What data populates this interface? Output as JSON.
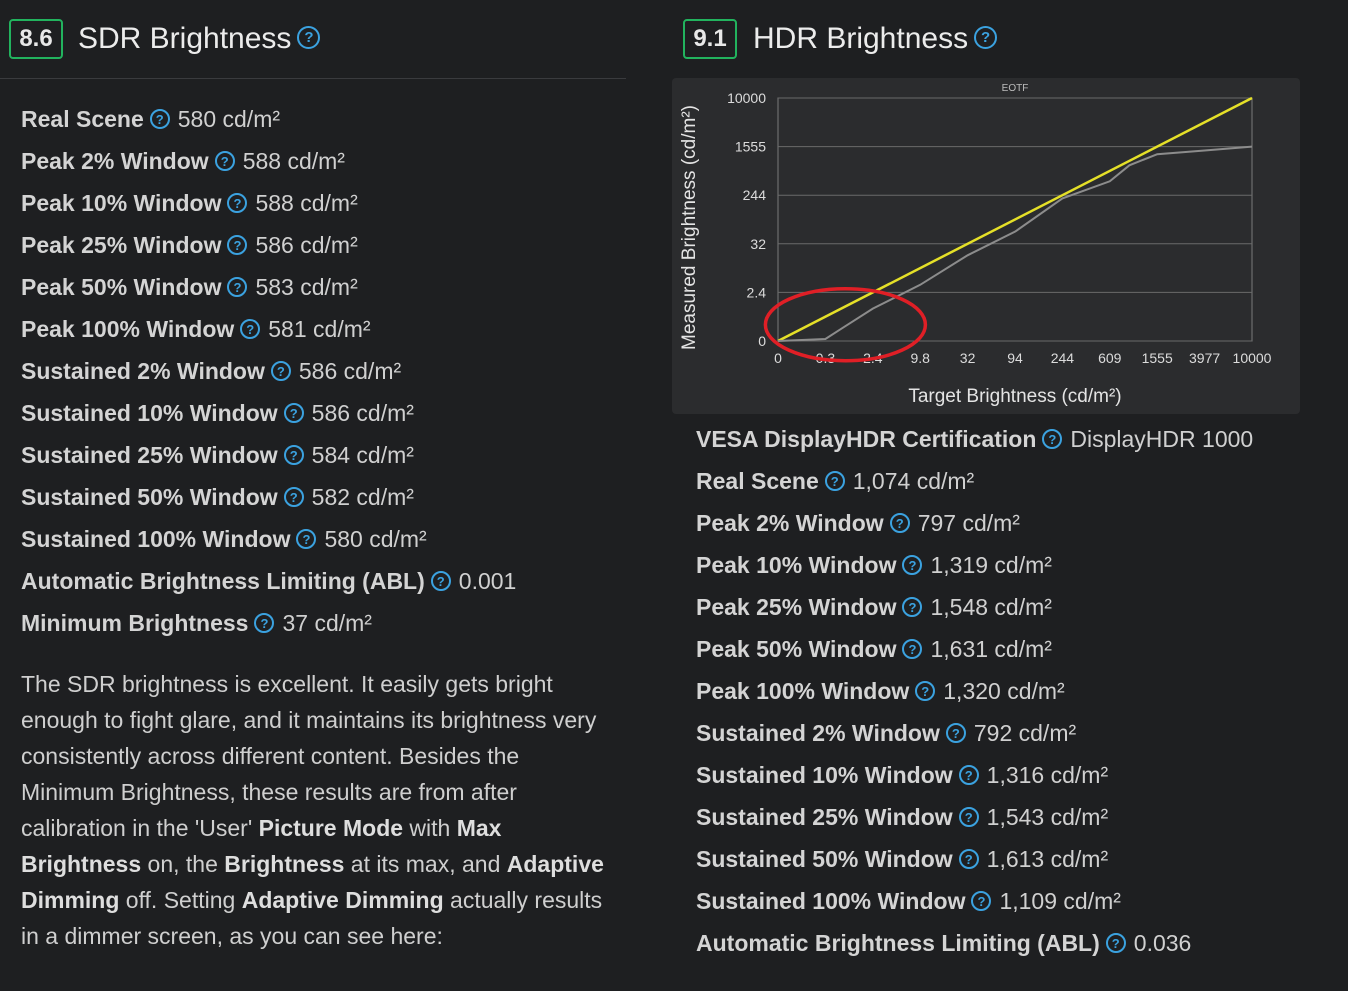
{
  "sdr": {
    "score": "8.6",
    "title": "SDR Brightness",
    "help_glyph": "?",
    "specs": [
      {
        "label": "Real Scene",
        "value": "580 cd/m²"
      },
      {
        "label": "Peak 2% Window",
        "value": "588 cd/m²"
      },
      {
        "label": "Peak 10% Window",
        "value": "588 cd/m²"
      },
      {
        "label": "Peak 25% Window",
        "value": "586 cd/m²"
      },
      {
        "label": "Peak 50% Window",
        "value": "583 cd/m²"
      },
      {
        "label": "Peak 100% Window",
        "value": "581 cd/m²"
      },
      {
        "label": "Sustained 2% Window",
        "value": "586 cd/m²"
      },
      {
        "label": "Sustained 10% Window",
        "value": "586 cd/m²"
      },
      {
        "label": "Sustained 25% Window",
        "value": "584 cd/m²"
      },
      {
        "label": "Sustained 50% Window",
        "value": "582 cd/m²"
      },
      {
        "label": "Sustained 100% Window",
        "value": "580 cd/m²"
      },
      {
        "label": "Automatic Brightness Limiting (ABL)",
        "value": "0.001"
      },
      {
        "label": "Minimum Brightness",
        "value": "37 cd/m²"
      }
    ],
    "description": [
      {
        "text": "The SDR brightness is excellent. It easily gets bright enough to fight glare, and it maintains its brightness very consistently across different content. Besides the Minimum Brightness, these results are from after calibration in the 'User' ",
        "bold": false
      },
      {
        "text": "Picture Mode",
        "bold": true
      },
      {
        "text": " with ",
        "bold": false
      },
      {
        "text": "Max Brightness",
        "bold": true
      },
      {
        "text": " on, the ",
        "bold": false
      },
      {
        "text": "Brightness",
        "bold": true
      },
      {
        "text": " at its max, and ",
        "bold": false
      },
      {
        "text": "Adaptive Dimming",
        "bold": true
      },
      {
        "text": " off. Setting ",
        "bold": false
      },
      {
        "text": "Adaptive Dimming",
        "bold": true
      },
      {
        "text": " actually results in a dimmer screen, as you can see here:",
        "bold": false
      }
    ]
  },
  "hdr": {
    "score": "9.1",
    "title": "HDR Brightness",
    "help_glyph": "?",
    "specs": [
      {
        "label": "VESA DisplayHDR Certification",
        "value": "DisplayHDR 1000"
      },
      {
        "label": "Real Scene",
        "value": "1,074 cd/m²"
      },
      {
        "label": "Peak 2% Window",
        "value": "797 cd/m²"
      },
      {
        "label": "Peak 10% Window",
        "value": "1,319 cd/m²"
      },
      {
        "label": "Peak 25% Window",
        "value": "1,548 cd/m²"
      },
      {
        "label": "Peak 50% Window",
        "value": "1,631 cd/m²"
      },
      {
        "label": "Peak 100% Window",
        "value": "1,320 cd/m²"
      },
      {
        "label": "Sustained 2% Window",
        "value": "792 cd/m²"
      },
      {
        "label": "Sustained 10% Window",
        "value": "1,316 cd/m²"
      },
      {
        "label": "Sustained 25% Window",
        "value": "1,543 cd/m²"
      },
      {
        "label": "Sustained 50% Window",
        "value": "1,613 cd/m²"
      },
      {
        "label": "Sustained 100% Window",
        "value": "1,109 cd/m²"
      },
      {
        "label": "Automatic Brightness Limiting (ABL)",
        "value": "0.036"
      }
    ]
  },
  "chart_data": {
    "type": "line",
    "title": "EOTF",
    "xlabel": "Target Brightness (cd/m²)",
    "ylabel": "Measured Brightness (cd/m²)",
    "x_ticks": [
      "0",
      "0.3",
      "2.4",
      "9.8",
      "32",
      "94",
      "244",
      "609",
      "1555",
      "3977",
      "10000"
    ],
    "y_ticks": [
      "0",
      "2.4",
      "32",
      "244",
      "1555",
      "10000"
    ],
    "grid": true,
    "series": [
      {
        "role": "target",
        "color": "#e5e028",
        "points": [
          [
            0,
            0
          ],
          [
            10000,
            10000
          ]
        ]
      },
      {
        "role": "measured",
        "color": "#8c8c8c",
        "points": [
          [
            0,
            0
          ],
          [
            0.3,
            0.1
          ],
          [
            1.0,
            0.6
          ],
          [
            2.4,
            1.6
          ],
          [
            9.8,
            7
          ],
          [
            32,
            25
          ],
          [
            94,
            85
          ],
          [
            244,
            230
          ],
          [
            609,
            620
          ],
          [
            1000,
            1050
          ],
          [
            1555,
            1350
          ],
          [
            3977,
            1450
          ],
          [
            10000,
            1560
          ]
        ]
      }
    ],
    "annotation": {
      "shape": "ellipse",
      "color": "#e01f26",
      "x_range": [
        0,
        2.4
      ],
      "y_range": [
        0,
        2.4
      ]
    }
  }
}
